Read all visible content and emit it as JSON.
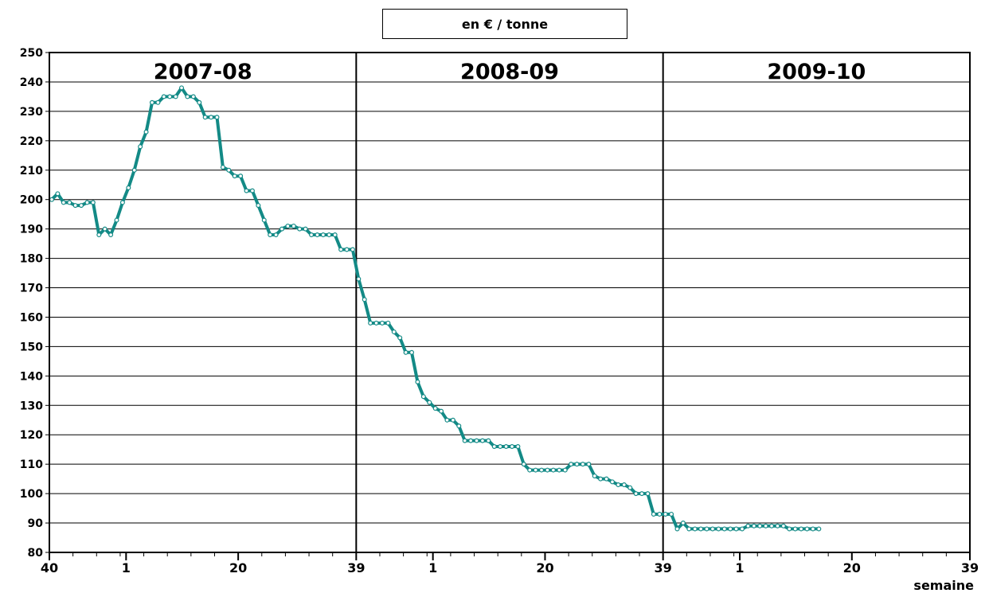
{
  "chart_data": {
    "type": "line",
    "unit_label": "en € / tonne",
    "xlabel": "semaine",
    "ylim": [
      80,
      250
    ],
    "y_ticks": [
      80,
      90,
      100,
      110,
      120,
      130,
      140,
      150,
      160,
      170,
      180,
      190,
      200,
      210,
      220,
      230,
      240,
      250
    ],
    "grid": true,
    "seasons": [
      "2007-08",
      "2008-09",
      "2009-10"
    ],
    "x_tick_labels": [
      "40",
      "1",
      "20",
      "39",
      "1",
      "20",
      "39",
      "1",
      "20",
      "39"
    ],
    "series_color": "#138a86",
    "series": [
      {
        "values": [
          200,
          202,
          199,
          199,
          198,
          198,
          199,
          199,
          188,
          190,
          188,
          193,
          199,
          204,
          210,
          218,
          223,
          233,
          233,
          235,
          235,
          235,
          238,
          235,
          235,
          233,
          228,
          228,
          228,
          211,
          210,
          208,
          208,
          203,
          203,
          198,
          193,
          188,
          188,
          190,
          191,
          191,
          190,
          190,
          188,
          188,
          188,
          188,
          188,
          183,
          183,
          183,
          173,
          166,
          158,
          158,
          158,
          158,
          155,
          153,
          148,
          148,
          138,
          133,
          131,
          129,
          128,
          125,
          125,
          123,
          118,
          118,
          118,
          118,
          118,
          116,
          116,
          116,
          116,
          116,
          110,
          108,
          108,
          108,
          108,
          108,
          108,
          108,
          110,
          110,
          110,
          110,
          106,
          105,
          105,
          104,
          103,
          103,
          102,
          100,
          100,
          100,
          93,
          93,
          93,
          93,
          88,
          90,
          88,
          88,
          88,
          88,
          88,
          88,
          88,
          88,
          88,
          88,
          89,
          89,
          89,
          89,
          89,
          89,
          89,
          88,
          88,
          88,
          88,
          88,
          88
        ]
      }
    ]
  }
}
